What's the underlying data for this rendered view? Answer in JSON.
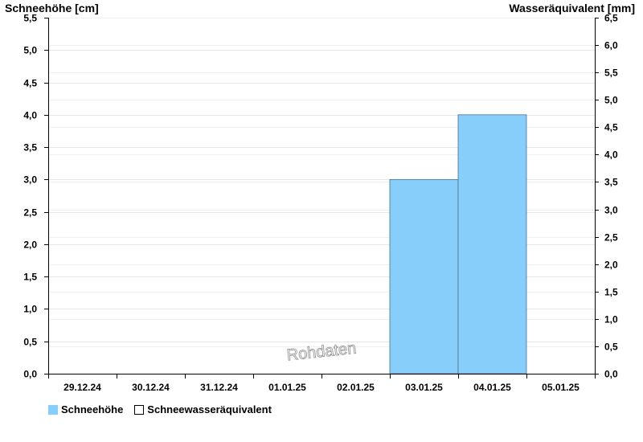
{
  "chart_data": {
    "type": "bar",
    "left_axis_title": "Schneehöhe [cm]",
    "right_axis_title": "Wasseräquivalent [mm]",
    "categories": [
      "29.12.24",
      "30.12.24",
      "31.12.24",
      "01.01.25",
      "02.01.25",
      "03.01.25",
      "04.01.25",
      "05.01.25"
    ],
    "series": [
      {
        "name": "Schneehöhe",
        "axis": "left",
        "color": "#87cefa",
        "values": [
          0,
          0,
          0,
          0,
          0,
          3.0,
          4.0,
          0
        ]
      },
      {
        "name": "Schneewasseräquivalent",
        "axis": "right",
        "color": "#ffffff",
        "values": [
          0,
          0,
          0,
          0,
          0,
          0,
          0,
          0
        ]
      }
    ],
    "left_axis": {
      "min": 0,
      "max": 5.5,
      "step": 0.5
    },
    "right_axis": {
      "min": 0,
      "max": 6.5,
      "step": 0.5
    },
    "left_ticks": [
      "0,0",
      "0,5",
      "1,0",
      "1,5",
      "2,0",
      "2,5",
      "3,0",
      "3,5",
      "4,0",
      "4,5",
      "5,0",
      "5,5"
    ],
    "right_ticks": [
      "0,0",
      "0,5",
      "1,0",
      "1,5",
      "2,0",
      "2,5",
      "3,0",
      "3,5",
      "4,0",
      "4,5",
      "5,0",
      "5,5",
      "6,0",
      "6,5"
    ],
    "watermark": "Rohdaten",
    "grid": true,
    "legend_position": "bottom-left"
  },
  "legend": {
    "items": [
      {
        "label": "Schneehöhe"
      },
      {
        "label": "Schneewasseräquivalent"
      }
    ]
  }
}
